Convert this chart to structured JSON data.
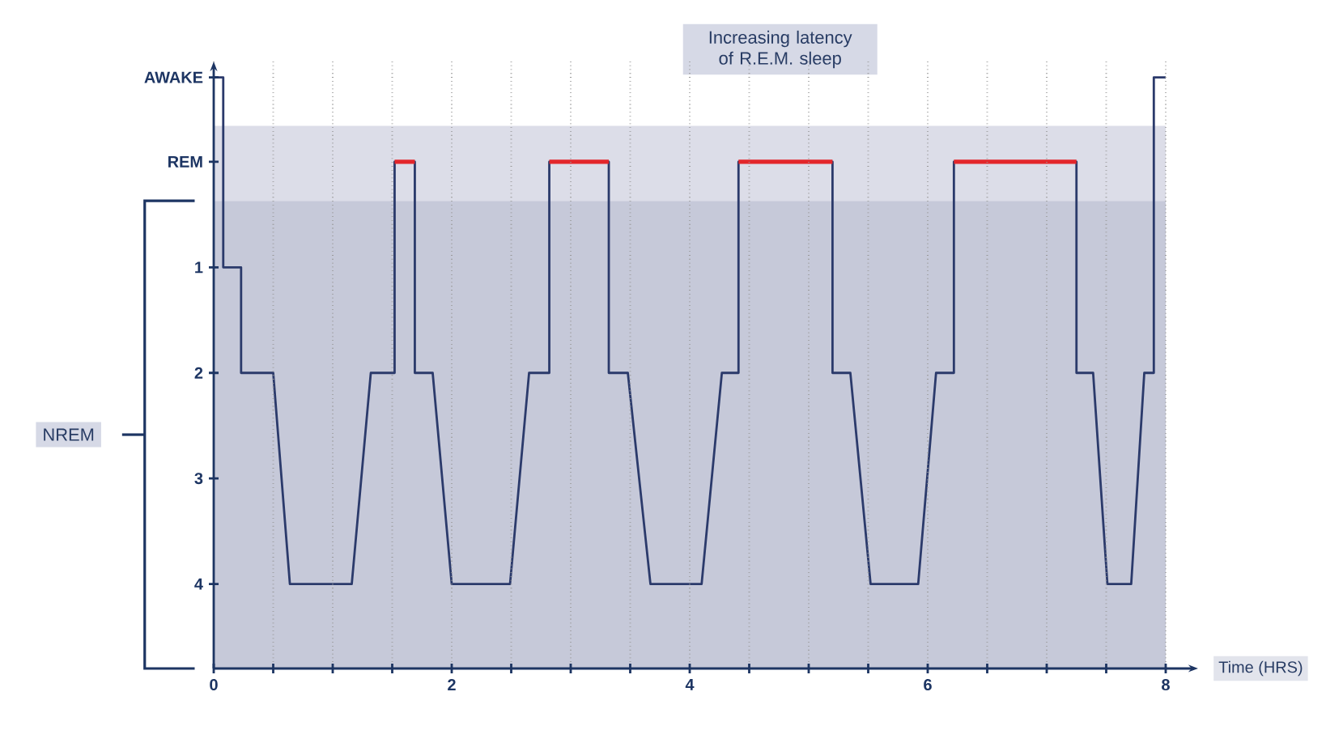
{
  "chart_data": {
    "type": "line",
    "xlabel": "Time (HRS)",
    "annotations": [
      "Increasing latency of R.E.M. sleep",
      "NREM"
    ],
    "xlim": [
      0,
      8
    ],
    "ylim": [
      4.8,
      -0.95
    ],
    "xticks": [
      0,
      {
        "value": 0.5,
        "label": null
      },
      {
        "value": 1,
        "label": null
      },
      {
        "value": 1.5,
        "label": null
      },
      2,
      {
        "value": 2.5,
        "label": null
      },
      {
        "value": 3,
        "label": null
      },
      {
        "value": 3.5,
        "label": null
      },
      4,
      {
        "value": 4.5,
        "label": null
      },
      {
        "value": 5,
        "label": null
      },
      {
        "value": 5.5,
        "label": null
      },
      6,
      {
        "value": 6.5,
        "label": null
      },
      {
        "value": 7,
        "label": null
      },
      {
        "value": 7.5,
        "label": null
      },
      8
    ],
    "yticks": [
      4,
      3,
      2,
      1,
      {
        "value": 0,
        "label": "REM"
      },
      {
        "value": -0.8,
        "label": "AWAKE"
      }
    ],
    "grid": "x",
    "bands": [
      {
        "axis": "y",
        "from": 0.37,
        "to": -0.34,
        "color": "#dcdde8"
      },
      {
        "axis": "y",
        "from": 4.8,
        "to": 0.37,
        "color": "#c6c9d9"
      }
    ],
    "series": [
      {
        "color": "#2b3a6b",
        "x": [
          0,
          0.08,
          0.08,
          0.23,
          0.23,
          0.5,
          0.64,
          1.16,
          1.32,
          1.52,
          1.52,
          1.69,
          1.69,
          1.84,
          2.0,
          2.49,
          2.65,
          2.82,
          2.82,
          3.32,
          3.32,
          3.48,
          3.67,
          4.1,
          4.27,
          4.41,
          4.41,
          5.2,
          5.2,
          5.35,
          5.52,
          5.92,
          6.07,
          6.22,
          6.22,
          7.25,
          7.25,
          7.39,
          7.51,
          7.71,
          7.82,
          7.9,
          7.9,
          8.0
        ],
        "values": [
          -0.8,
          -0.8,
          1,
          1,
          2,
          2,
          4,
          4,
          2,
          2,
          0,
          0,
          2,
          2,
          4,
          4,
          2,
          2,
          0,
          0,
          2,
          2,
          4,
          4,
          2,
          2,
          0,
          0,
          2,
          2,
          4,
          4,
          2,
          2,
          0,
          0,
          2,
          2,
          4,
          4,
          2,
          2,
          -0.8,
          -0.8
        ]
      },
      {
        "color": "#e3262b",
        "x": [
          1.52,
          1.69
        ],
        "values": [
          0,
          0
        ]
      },
      {
        "color": "#e3262b",
        "x": [
          2.82,
          3.32
        ],
        "values": [
          0,
          0
        ]
      },
      {
        "color": "#e3262b",
        "x": [
          4.41,
          5.2
        ],
        "values": [
          0,
          0
        ]
      },
      {
        "color": "#e3262b",
        "x": [
          6.22,
          7.25
        ],
        "values": [
          0,
          0
        ]
      }
    ]
  }
}
